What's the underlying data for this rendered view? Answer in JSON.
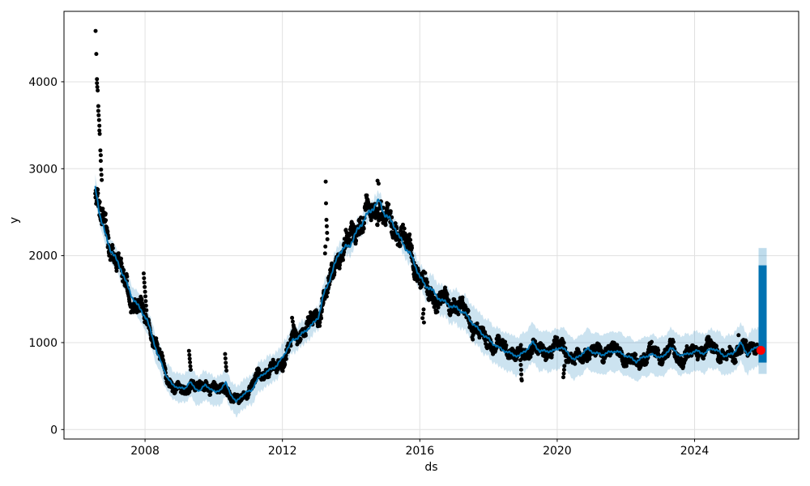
{
  "figure": {
    "background": "#ffffff"
  },
  "chart_data": {
    "type": "scatter",
    "description": "Prophet-style forecast plot: black observed data points, dark blue yhat forecast line, light blue uncertainty interval, dense blue vertical forecast-range bar at far right, red latest forecast point",
    "title": "",
    "xlabel": "ds",
    "ylabel": "y",
    "xlim": [
      2005.64,
      2027.03
    ],
    "ylim": [
      -109,
      4810
    ],
    "x_ticks": [
      2008,
      2012,
      2016,
      2020,
      2024
    ],
    "x_tick_labels": [
      "2008",
      "2012",
      "2016",
      "2020",
      "2024"
    ],
    "y_ticks": [
      0,
      1000,
      2000,
      3000,
      4000
    ],
    "y_tick_labels": [
      "0",
      "1000",
      "2000",
      "3000",
      "4000"
    ],
    "grid": true,
    "legend": false,
    "colors": {
      "observed": "#000000",
      "forecast_line": "#0072B2",
      "uncertainty_band": "rgba(0,114,178,0.2)",
      "forecast_bar": "#0072B2",
      "forecast_bar_band": "rgba(0,114,178,0.25)",
      "latest_point": "#ff0000",
      "grid": "#e0e0e0",
      "spine": "#000000",
      "text": "#000000"
    },
    "series": {
      "yhat_keypoints": [
        [
          2006.55,
          2780
        ],
        [
          2006.7,
          2450
        ],
        [
          2006.85,
          2230
        ],
        [
          2007.0,
          2070
        ],
        [
          2007.15,
          1960
        ],
        [
          2007.3,
          1845
        ],
        [
          2007.45,
          1690
        ],
        [
          2007.6,
          1545
        ],
        [
          2007.75,
          1445
        ],
        [
          2007.9,
          1365
        ],
        [
          2008.05,
          1265
        ],
        [
          2008.2,
          1090
        ],
        [
          2008.35,
          880
        ],
        [
          2008.5,
          740
        ],
        [
          2008.65,
          595
        ],
        [
          2008.8,
          515
        ],
        [
          2009.0,
          478
        ],
        [
          2009.15,
          468
        ],
        [
          2009.3,
          552
        ],
        [
          2009.45,
          472
        ],
        [
          2009.6,
          448
        ],
        [
          2009.75,
          512
        ],
        [
          2009.9,
          472
        ],
        [
          2010.05,
          425
        ],
        [
          2010.2,
          465
        ],
        [
          2010.35,
          535
        ],
        [
          2010.5,
          405
        ],
        [
          2010.65,
          315
        ],
        [
          2010.8,
          385
        ],
        [
          2010.95,
          428
        ],
        [
          2011.1,
          452
        ],
        [
          2011.25,
          558
        ],
        [
          2011.4,
          632
        ],
        [
          2011.55,
          662
        ],
        [
          2011.7,
          702
        ],
        [
          2011.85,
          742
        ],
        [
          2012.0,
          828
        ],
        [
          2012.15,
          935
        ],
        [
          2012.3,
          1028
        ],
        [
          2012.45,
          1062
        ],
        [
          2012.6,
          1108
        ],
        [
          2012.75,
          1168
        ],
        [
          2012.9,
          1215
        ],
        [
          2013.05,
          1302
        ],
        [
          2013.2,
          1548
        ],
        [
          2013.35,
          1702
        ],
        [
          2013.5,
          1868
        ],
        [
          2013.65,
          2038
        ],
        [
          2013.8,
          2088
        ],
        [
          2013.95,
          2112
        ],
        [
          2014.1,
          2228
        ],
        [
          2014.25,
          2332
        ],
        [
          2014.4,
          2438
        ],
        [
          2014.55,
          2502
        ],
        [
          2014.7,
          2588
        ],
        [
          2014.82,
          2622
        ],
        [
          2014.95,
          2502
        ],
        [
          2015.1,
          2422
        ],
        [
          2015.25,
          2352
        ],
        [
          2015.4,
          2212
        ],
        [
          2015.55,
          2112
        ],
        [
          2015.7,
          2032
        ],
        [
          2015.85,
          1902
        ],
        [
          2016.0,
          1762
        ],
        [
          2016.15,
          1652
        ],
        [
          2016.3,
          1632
        ],
        [
          2016.5,
          1528
        ],
        [
          2016.7,
          1472
        ],
        [
          2016.9,
          1422
        ],
        [
          2017.1,
          1392
        ],
        [
          2017.3,
          1342
        ],
        [
          2017.5,
          1242
        ],
        [
          2017.7,
          1152
        ],
        [
          2017.9,
          1072
        ],
        [
          2018.1,
          1002
        ],
        [
          2018.3,
          938
        ],
        [
          2018.5,
          902
        ],
        [
          2018.7,
          862
        ],
        [
          2018.9,
          845
        ],
        [
          2019.1,
          918
        ],
        [
          2019.3,
          1002
        ],
        [
          2019.5,
          898
        ],
        [
          2019.7,
          905
        ],
        [
          2019.9,
          902
        ],
        [
          2020.1,
          952
        ],
        [
          2020.3,
          888
        ],
        [
          2020.5,
          798
        ],
        [
          2020.7,
          868
        ],
        [
          2020.9,
          928
        ],
        [
          2021.1,
          878
        ],
        [
          2021.3,
          862
        ],
        [
          2021.5,
          885
        ],
        [
          2021.7,
          905
        ],
        [
          2021.9,
          868
        ],
        [
          2022.1,
          832
        ],
        [
          2022.3,
          785
        ],
        [
          2022.5,
          828
        ],
        [
          2022.7,
          862
        ],
        [
          2022.9,
          845
        ],
        [
          2023.1,
          832
        ],
        [
          2023.3,
          948
        ],
        [
          2023.5,
          868
        ],
        [
          2023.7,
          855
        ],
        [
          2023.9,
          885
        ],
        [
          2024.1,
          902
        ],
        [
          2024.3,
          872
        ],
        [
          2024.5,
          940
        ],
        [
          2024.7,
          895
        ],
        [
          2024.9,
          845
        ],
        [
          2025.1,
          872
        ],
        [
          2025.35,
          995
        ],
        [
          2025.55,
          860
        ],
        [
          2025.8,
          962
        ],
        [
          2025.88,
          945
        ]
      ],
      "band_halfwidth_keypoints": [
        [
          2006.55,
          125
        ],
        [
          2007.5,
          135
        ],
        [
          2008.5,
          160
        ],
        [
          2009.5,
          170
        ],
        [
          2010.6,
          168
        ],
        [
          2011.5,
          168
        ],
        [
          2012.5,
          140
        ],
        [
          2013.5,
          122
        ],
        [
          2014.8,
          102
        ],
        [
          2015.5,
          118
        ],
        [
          2016.3,
          158
        ],
        [
          2017.0,
          195
        ],
        [
          2018.0,
          210
        ],
        [
          2019.0,
          222
        ],
        [
          2020.0,
          232
        ],
        [
          2021.0,
          228
        ],
        [
          2022.0,
          228
        ],
        [
          2023.0,
          225
        ],
        [
          2024.0,
          225
        ],
        [
          2025.0,
          222
        ],
        [
          2026.1,
          225
        ]
      ],
      "observations": {
        "start": 2006.55,
        "end": 2025.83,
        "per_year": 150,
        "rel_sd": 0.052,
        "abs_sd": 56,
        "white": 0.55,
        "seed": 42
      },
      "outliers": {
        "initial_spike_2006": [
          [
            2006.56,
            4585
          ],
          [
            2006.58,
            4320
          ],
          [
            2006.6,
            4030
          ],
          [
            2006.6,
            3985
          ],
          [
            2006.61,
            3940
          ],
          [
            2006.62,
            3900
          ],
          [
            2006.64,
            3720
          ],
          [
            2006.64,
            3665
          ],
          [
            2006.65,
            3615
          ],
          [
            2006.66,
            3560
          ],
          [
            2006.67,
            3495
          ],
          [
            2006.67,
            3440
          ],
          [
            2006.68,
            3400
          ],
          [
            2006.7,
            3210
          ],
          [
            2006.71,
            3155
          ],
          [
            2006.71,
            3090
          ],
          [
            2006.72,
            2990
          ],
          [
            2006.73,
            2930
          ],
          [
            2006.74,
            2870
          ]
        ],
        "spike_2008": [
          [
            2007.96,
            1795
          ],
          [
            2007.97,
            1740
          ],
          [
            2007.98,
            1690
          ],
          [
            2007.99,
            1640
          ],
          [
            2008.0,
            1585
          ],
          [
            2008.01,
            1532
          ],
          [
            2008.02,
            1478
          ],
          [
            2008.03,
            1425
          ],
          [
            2008.04,
            1372
          ]
        ],
        "spike_2009": [
          [
            2009.28,
            905
          ],
          [
            2009.29,
            858
          ],
          [
            2009.3,
            815
          ],
          [
            2009.31,
            772
          ],
          [
            2009.32,
            728
          ],
          [
            2009.33,
            688
          ]
        ],
        "spike_2010": [
          [
            2010.33,
            868
          ],
          [
            2010.34,
            818
          ],
          [
            2010.35,
            768
          ],
          [
            2010.36,
            722
          ],
          [
            2010.37,
            678
          ]
        ],
        "spike_2012": [
          [
            2012.28,
            1285
          ],
          [
            2012.3,
            1242
          ],
          [
            2012.32,
            1200
          ],
          [
            2012.34,
            1158
          ]
        ],
        "spike_2013": [
          [
            2013.24,
            2025
          ],
          [
            2013.25,
            2105
          ],
          [
            2013.26,
            2852
          ],
          [
            2013.27,
            2602
          ],
          [
            2013.28,
            2412
          ],
          [
            2013.29,
            2338
          ],
          [
            2013.3,
            2262
          ],
          [
            2013.31,
            2188
          ]
        ],
        "peak_2014": [
          [
            2014.77,
            2862
          ],
          [
            2014.8,
            2828
          ]
        ],
        "dip_2016": [
          [
            2016.08,
            1282
          ],
          [
            2016.1,
            1332
          ],
          [
            2016.11,
            1382
          ],
          [
            2016.12,
            1232
          ]
        ],
        "dip_2019": [
          [
            2018.93,
            798
          ],
          [
            2018.94,
            743
          ],
          [
            2018.95,
            688
          ],
          [
            2018.955,
            634
          ],
          [
            2018.96,
            580
          ],
          [
            2018.97,
            565
          ]
        ],
        "dip_2020": [
          [
            2020.18,
            602
          ],
          [
            2020.19,
            645
          ],
          [
            2020.2,
            688
          ],
          [
            2020.21,
            732
          ]
        ],
        "outlier_2025": [
          [
            2025.28,
            1085
          ]
        ]
      },
      "forecast_bar": {
        "center_year": 2025.98,
        "width_years": 0.236,
        "yhat_min": 770,
        "yhat_max": 1888,
        "band_min": 640,
        "band_max": 2088
      },
      "latest_point": {
        "year": 2025.93,
        "value": 911
      }
    }
  }
}
